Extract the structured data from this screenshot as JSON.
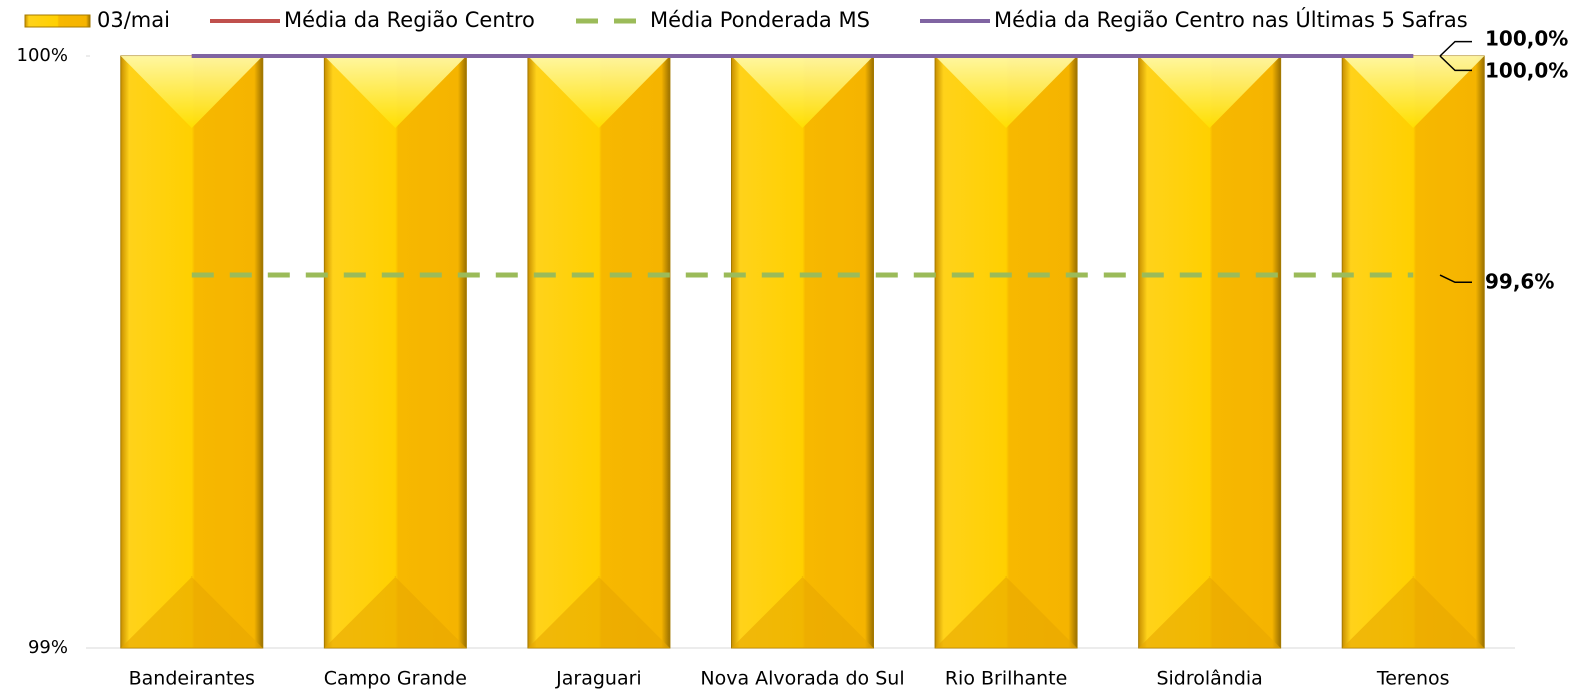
{
  "chart_data": {
    "type": "bar",
    "categories": [
      "Bandeirantes",
      "Campo Grande",
      "Jaraguari",
      "Nova Alvorada do Sul",
      "Rio Brilhante",
      "Sidrolândia",
      "Terenos"
    ],
    "series": [
      {
        "name": "03/mai",
        "type": "bar",
        "color": "#ffc000",
        "values": [
          100,
          100,
          100,
          100,
          100,
          100,
          100
        ]
      },
      {
        "name": "Média da Região Centro",
        "type": "line",
        "color": "#c0504d",
        "dashed": false,
        "values": [
          100,
          100,
          100,
          100,
          100,
          100,
          100
        ],
        "end_label": "100,0%"
      },
      {
        "name": "Média Ponderada MS",
        "type": "line",
        "color": "#9bbb59",
        "dashed": true,
        "values": [
          99.63,
          99.63,
          99.63,
          99.63,
          99.63,
          99.63,
          99.63
        ],
        "end_label": "99,6%"
      },
      {
        "name": "Média da Região Centro nas Últimas 5 Safras",
        "type": "line",
        "color": "#8064a2",
        "dashed": false,
        "values": [
          100,
          100,
          100,
          100,
          100,
          100,
          100
        ],
        "end_label": "100,0%"
      }
    ],
    "ylim": [
      99,
      100
    ],
    "yticks": [
      {
        "value": 99,
        "label": "99%"
      },
      {
        "value": 100,
        "label": "100%"
      }
    ]
  }
}
